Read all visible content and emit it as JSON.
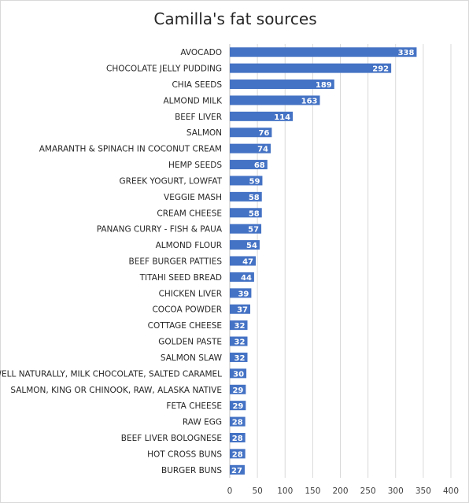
{
  "chart_data": {
    "type": "bar",
    "orientation": "horizontal",
    "title": "Camilla's fat sources",
    "xlabel": "",
    "ylabel": "",
    "xlim": [
      0,
      400
    ],
    "x_ticks": [
      0,
      50,
      100,
      150,
      200,
      250,
      300,
      350,
      400
    ],
    "grid": "vertical",
    "legend": "none",
    "bar_color": "#4472c4",
    "categories": [
      "AVOCADO",
      "CHOCOLATE JELLY PUDDING",
      "CHIA SEEDS",
      "ALMOND MILK",
      "BEEF LIVER",
      "SALMON",
      "AMARANTH & SPINACH IN COCONUT CREAM",
      "HEMP SEEDS",
      "GREEK YOGURT, LOWFAT",
      "VEGGIE MASH",
      "CREAM CHEESE",
      "PANANG CURRY - FISH & PAUA",
      "ALMOND FLOUR",
      "BEEF BURGER PATTIES",
      "TITAHI SEED BREAD",
      "CHICKEN LIVER",
      "COCOA POWDER",
      "COTTAGE CHEESE",
      "GOLDEN PASTE",
      "SALMON SLAW",
      "WELL NATURALLY, MILK CHOCOLATE, SALTED CARAMEL",
      "SALMON, KING OR CHINOOK, RAW, ALASKA NATIVE",
      "FETA CHEESE",
      "RAW EGG",
      "BEEF LIVER BOLOGNESE",
      "HOT CROSS BUNS",
      "BURGER BUNS"
    ],
    "values": [
      338,
      292,
      189,
      163,
      114,
      76,
      74,
      68,
      59,
      58,
      58,
      57,
      54,
      47,
      44,
      39,
      37,
      32,
      32,
      32,
      30,
      29,
      29,
      28,
      28,
      28,
      27
    ]
  }
}
